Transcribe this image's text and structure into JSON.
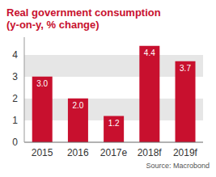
{
  "chart_data": {
    "type": "bar",
    "title": "Real government consumption",
    "subtitle": "(y-on-y, % change)",
    "categories": [
      "2015",
      "2016",
      "2017e",
      "2018f",
      "2019f"
    ],
    "values": [
      3.0,
      2.0,
      1.2,
      4.4,
      3.7
    ],
    "value_labels": [
      "3.0",
      "2.0",
      "1.2",
      "4.4",
      "3.7"
    ],
    "color": "#c8102e",
    "ylim": [
      0,
      4.8
    ],
    "yticks": [
      0,
      1,
      2,
      3,
      4
    ],
    "grid": true,
    "data_labels": true,
    "annotations": [
      "Source: Macrobond"
    ]
  }
}
